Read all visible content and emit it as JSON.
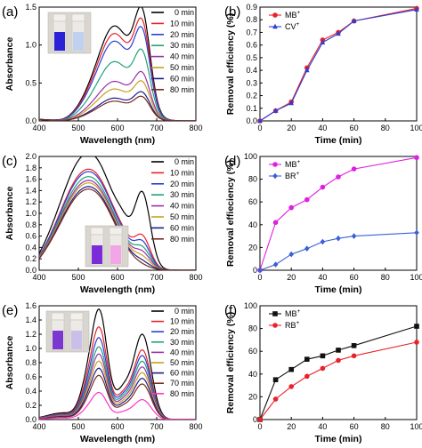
{
  "chart_data": [
    {
      "panel": "(a)",
      "type": "line",
      "xlabel": "Wavelength (nm)",
      "ylabel": "Absorbance",
      "xlim": [
        400,
        800
      ],
      "ylim": [
        0.0,
        1.5
      ],
      "xticks": [
        "400",
        "500",
        "600",
        "700",
        "800"
      ],
      "yticks": [
        "0.0",
        "0.5",
        "1.0",
        "1.5"
      ],
      "legend_position": "top-right",
      "series": [
        {
          "name": "0 min",
          "color": "#000000",
          "peaks": [
            {
              "x": 590,
              "y": 1.25
            },
            {
              "x": 664,
              "y": 1.48
            }
          ]
        },
        {
          "name": "10 min",
          "color": "#e8212a",
          "peaks": [
            {
              "x": 590,
              "y": 1.15
            },
            {
              "x": 664,
              "y": 1.33
            }
          ]
        },
        {
          "name": "20 min",
          "color": "#2b3fd4",
          "peaks": [
            {
              "x": 590,
              "y": 1.05
            },
            {
              "x": 664,
              "y": 1.22
            }
          ]
        },
        {
          "name": "30 min",
          "color": "#1fa27a",
          "peaks": [
            {
              "x": 590,
              "y": 0.78
            },
            {
              "x": 664,
              "y": 0.93
            }
          ]
        },
        {
          "name": "40 min",
          "color": "#9b2fae",
          "peaks": [
            {
              "x": 590,
              "y": 0.52
            },
            {
              "x": 664,
              "y": 0.64
            }
          ]
        },
        {
          "name": "50 min",
          "color": "#c9a01f",
          "peaks": [
            {
              "x": 590,
              "y": 0.42
            },
            {
              "x": 664,
              "y": 0.52
            }
          ]
        },
        {
          "name": "60 min",
          "color": "#1c1c8c",
          "peaks": [
            {
              "x": 590,
              "y": 0.3
            },
            {
              "x": 664,
              "y": 0.38
            }
          ]
        },
        {
          "name": "80 min",
          "color": "#7a2a20",
          "peaks": [
            {
              "x": 590,
              "y": 0.26
            },
            {
              "x": 664,
              "y": 0.32
            }
          ]
        }
      ]
    },
    {
      "panel": "(b)",
      "type": "line",
      "xlabel": "Time (min)",
      "ylabel": "Removal efficiency (%)",
      "xlim": [
        0,
        100
      ],
      "ylim": [
        0.0,
        0.9
      ],
      "xticks": [
        "0",
        "20",
        "40",
        "60",
        "80",
        "100"
      ],
      "yticks": [
        "0.0",
        "0.1",
        "0.2",
        "0.3",
        "0.4",
        "0.5",
        "0.6",
        "0.7",
        "0.8",
        "0.9"
      ],
      "legend_position": "top-left",
      "x": [
        0,
        10,
        20,
        30,
        40,
        50,
        60,
        100
      ],
      "series": [
        {
          "name": "MB",
          "charge": "+",
          "color": "#e8212a",
          "marker": "circle",
          "values": [
            0.0,
            0.08,
            0.15,
            0.42,
            0.64,
            0.7,
            0.79,
            0.89
          ]
        },
        {
          "name": "CV",
          "charge": "+",
          "color": "#2b3fd4",
          "marker": "triangle",
          "values": [
            0.0,
            0.08,
            0.14,
            0.4,
            0.62,
            0.69,
            0.79,
            0.88
          ]
        }
      ]
    },
    {
      "panel": "(c)",
      "type": "line",
      "xlabel": "Wavelength (nm)",
      "ylabel": "Absorbance",
      "xlim": [
        400,
        800
      ],
      "ylim": [
        0.0,
        2.0
      ],
      "xticks": [
        "400",
        "500",
        "600",
        "700",
        "800"
      ],
      "yticks": [
        "0.0",
        "0.2",
        "0.4",
        "0.6",
        "0.8",
        "1.0",
        "1.2",
        "1.4",
        "1.6",
        "1.8",
        "2.0"
      ],
      "legend_position": "top-right",
      "series": [
        {
          "name": "0 min",
          "color": "#000000",
          "peaks": [
            {
              "x": 555,
              "y": 1.88
            },
            {
              "x": 664,
              "y": 1.38
            }
          ]
        },
        {
          "name": "10 min",
          "color": "#e8212a",
          "peaks": [
            {
              "x": 555,
              "y": 1.62
            },
            {
              "x": 664,
              "y": 0.62
            }
          ]
        },
        {
          "name": "20 min",
          "color": "#2b3fd4",
          "peaks": [
            {
              "x": 555,
              "y": 1.58
            },
            {
              "x": 664,
              "y": 0.52
            }
          ]
        },
        {
          "name": "30 min",
          "color": "#1fa27a",
          "peaks": [
            {
              "x": 555,
              "y": 1.5
            },
            {
              "x": 664,
              "y": 0.42
            }
          ]
        },
        {
          "name": "40 min",
          "color": "#9b2fae",
          "peaks": [
            {
              "x": 555,
              "y": 1.44
            },
            {
              "x": 664,
              "y": 0.34
            }
          ]
        },
        {
          "name": "50 min",
          "color": "#c9a01f",
          "peaks": [
            {
              "x": 555,
              "y": 1.4
            },
            {
              "x": 664,
              "y": 0.26
            }
          ]
        },
        {
          "name": "60 min",
          "color": "#1c1c8c",
          "peaks": [
            {
              "x": 555,
              "y": 1.34
            },
            {
              "x": 664,
              "y": 0.18
            }
          ]
        },
        {
          "name": "80 min",
          "color": "#7a2a20",
          "peaks": [
            {
              "x": 555,
              "y": 1.3
            },
            {
              "x": 664,
              "y": 0.12
            }
          ]
        }
      ]
    },
    {
      "panel": "(d)",
      "type": "line",
      "xlabel": "Time (min)",
      "ylabel": "Removal effieciency (%)",
      "xlim": [
        0,
        100
      ],
      "ylim": [
        0,
        100
      ],
      "xticks": [
        "0",
        "20",
        "40",
        "60",
        "80",
        "100"
      ],
      "yticks": [
        "0",
        "20",
        "40",
        "60",
        "80",
        "100"
      ],
      "legend_position": "top-left",
      "x": [
        0,
        10,
        20,
        30,
        40,
        50,
        60,
        100
      ],
      "series": [
        {
          "name": "MB",
          "charge": "+",
          "color": "#e020e0",
          "marker": "circle",
          "values": [
            0,
            42,
            55,
            62,
            73,
            82,
            89,
            99
          ]
        },
        {
          "name": "BR",
          "charge": "+",
          "color": "#3a5fd9",
          "marker": "diamond",
          "values": [
            0,
            5,
            14,
            19,
            25,
            28,
            30,
            33
          ]
        }
      ]
    },
    {
      "panel": "(e)",
      "type": "line",
      "xlabel": "Wavelength (nm)",
      "ylabel": "Absorbance",
      "xlim": [
        400,
        800
      ],
      "ylim": [
        0.0,
        1.6
      ],
      "xticks": [
        "400",
        "500",
        "600",
        "700",
        "800"
      ],
      "yticks": [
        "0.0",
        "0.2",
        "0.4",
        "0.6",
        "0.8",
        "1.0",
        "1.2",
        "1.4",
        "1.6"
      ],
      "legend_position": "top-right",
      "series": [
        {
          "name": "0 min",
          "color": "#000000",
          "peaks": [
            {
              "x": 554,
              "y": 1.55
            },
            {
              "x": 664,
              "y": 1.2
            }
          ]
        },
        {
          "name": "10 min",
          "color": "#e8212a",
          "peaks": [
            {
              "x": 554,
              "y": 1.3
            },
            {
              "x": 664,
              "y": 0.98
            }
          ]
        },
        {
          "name": "20 min",
          "color": "#2b3fd4",
          "peaks": [
            {
              "x": 554,
              "y": 1.15
            },
            {
              "x": 664,
              "y": 0.9
            }
          ]
        },
        {
          "name": "30 min",
          "color": "#1fa27a",
          "peaks": [
            {
              "x": 554,
              "y": 1.02
            },
            {
              "x": 664,
              "y": 0.82
            }
          ]
        },
        {
          "name": "40 min",
          "color": "#9b2fae",
          "peaks": [
            {
              "x": 554,
              "y": 0.92
            },
            {
              "x": 664,
              "y": 0.74
            }
          ]
        },
        {
          "name": "50 min",
          "color": "#c9a01f",
          "peaks": [
            {
              "x": 554,
              "y": 0.82
            },
            {
              "x": 664,
              "y": 0.66
            }
          ]
        },
        {
          "name": "60 min",
          "color": "#1c1c8c",
          "peaks": [
            {
              "x": 554,
              "y": 0.72
            },
            {
              "x": 664,
              "y": 0.58
            }
          ]
        },
        {
          "name": "70 min",
          "color": "#7a2a20",
          "peaks": [
            {
              "x": 554,
              "y": 0.62
            },
            {
              "x": 664,
              "y": 0.5
            }
          ]
        },
        {
          "name": "80 min",
          "color": "#ff33cc",
          "peaks": [
            {
              "x": 554,
              "y": 0.38
            },
            {
              "x": 664,
              "y": 0.28
            }
          ]
        }
      ]
    },
    {
      "panel": "(f)",
      "type": "line",
      "xlabel": "Time (min)",
      "ylabel": "Removal efficiency (%)",
      "xlim": [
        0,
        100
      ],
      "ylim": [
        0,
        100
      ],
      "xticks": [
        "0",
        "20",
        "40",
        "60",
        "80",
        "100"
      ],
      "yticks": [
        "0",
        "20",
        "40",
        "60",
        "80",
        "100"
      ],
      "legend_position": "top-left",
      "x": [
        0,
        10,
        20,
        30,
        40,
        50,
        60,
        100
      ],
      "series": [
        {
          "name": "MB",
          "charge": "+",
          "color": "#111111",
          "marker": "square",
          "values": [
            0,
            35,
            44,
            53,
            56,
            61,
            65,
            82
          ]
        },
        {
          "name": "RB",
          "charge": "+",
          "color": "#e8212a",
          "marker": "circle",
          "values": [
            0,
            18,
            29,
            38,
            45,
            52,
            56,
            68
          ]
        }
      ]
    }
  ]
}
